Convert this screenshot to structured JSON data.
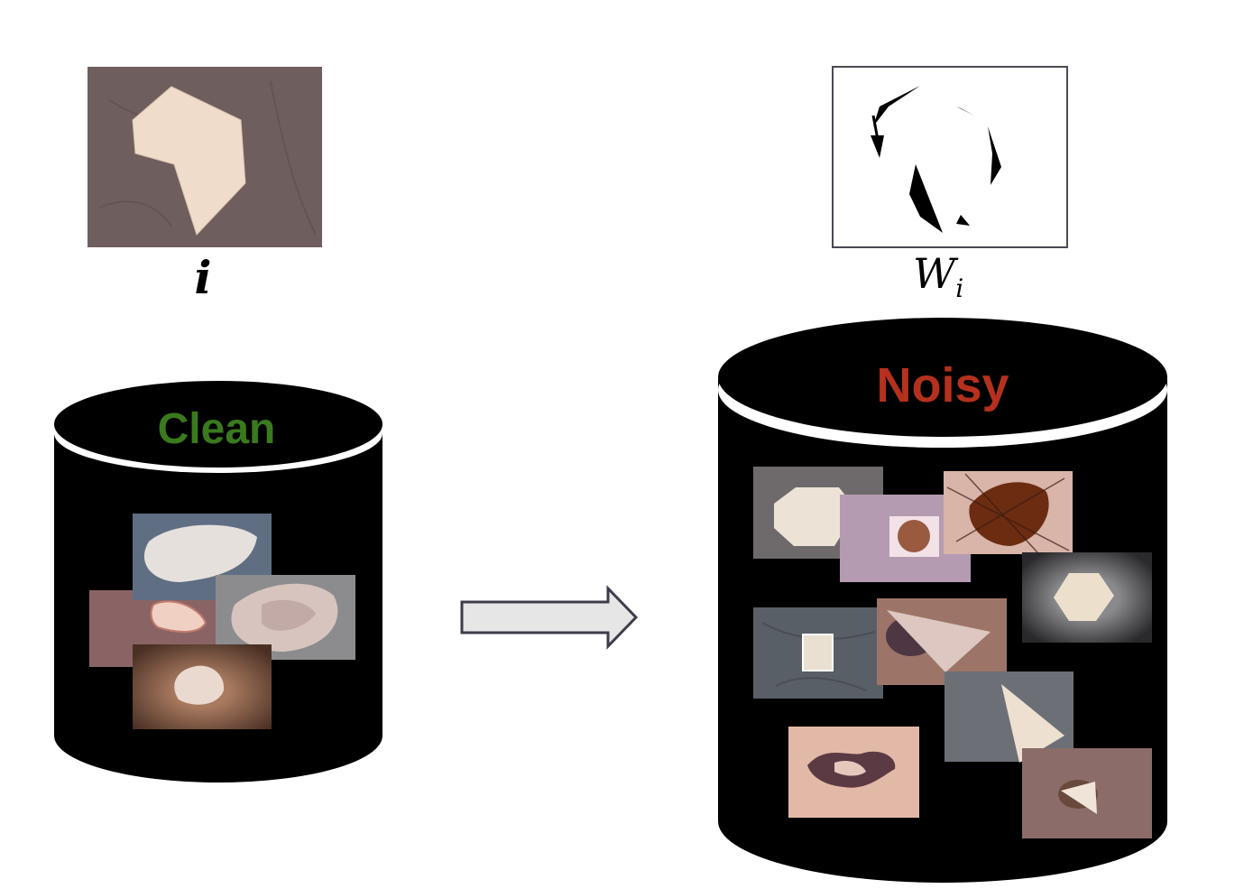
{
  "labels": {
    "input_symbol": "i",
    "weight_symbol_main": "W",
    "weight_symbol_sub": "i"
  },
  "databases": {
    "clean": {
      "title": "Clean",
      "color": "#3a7a1e"
    },
    "noisy": {
      "title": "Noisy",
      "color": "#b5311e"
    }
  },
  "colors": {
    "cylinder": "#000000",
    "arrow_fill": "#e6e6e6",
    "arrow_stroke": "#3d3d4a"
  }
}
